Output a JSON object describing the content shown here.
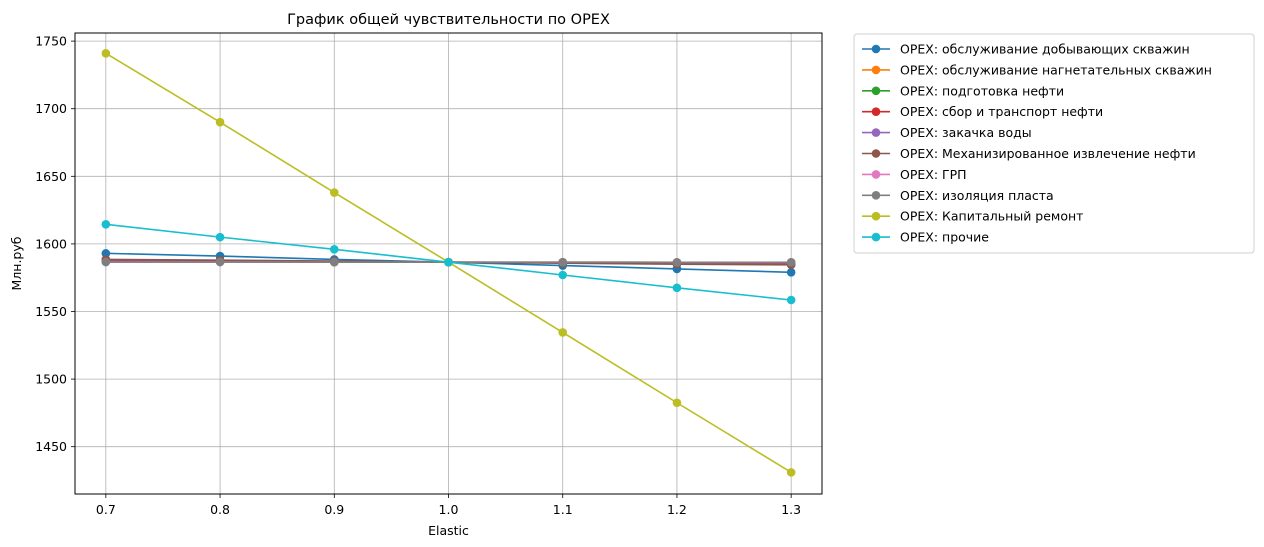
{
  "chart_data": {
    "type": "line",
    "title": "График общей чувствительности по OPEX",
    "xlabel": "Elastic",
    "ylabel": "Млн.руб",
    "x": [
      0.7,
      0.8,
      0.9,
      1.0,
      1.1,
      1.2,
      1.3
    ],
    "x_ticks": [
      "0.7",
      "0.8",
      "0.9",
      "1.0",
      "1.1",
      "1.2",
      "1.3"
    ],
    "xlim": [
      0.673,
      1.327
    ],
    "y_ticks": [
      "1450",
      "1500",
      "1550",
      "1600",
      "1650",
      "1700",
      "1750"
    ],
    "y_tick_values": [
      1450,
      1500,
      1550,
      1600,
      1650,
      1700,
      1750
    ],
    "ylim": [
      1415,
      1756
    ],
    "grid": true,
    "legend_position": "outside-top-right",
    "series": [
      {
        "name": "OPEX: обслуживание добывающих скважин",
        "color": "#1f77b4",
        "values": [
          1593,
          1591,
          1588.5,
          1586.5,
          1584,
          1581.5,
          1579
        ]
      },
      {
        "name": "OPEX: обслуживание нагнетательных скважин",
        "color": "#ff7f0e",
        "values": [
          1587,
          1587,
          1586.8,
          1586.5,
          1586.3,
          1586,
          1585.8
        ]
      },
      {
        "name": "OPEX: подготовка нефти",
        "color": "#2ca02c",
        "values": [
          1587.5,
          1587.2,
          1586.9,
          1586.5,
          1586.1,
          1585.8,
          1585.5
        ]
      },
      {
        "name": "OPEX: сбор и транспорт нефти",
        "color": "#d62728",
        "values": [
          1588,
          1587.5,
          1587,
          1586.5,
          1586,
          1585.5,
          1585
        ]
      },
      {
        "name": "OPEX: закачка воды",
        "color": "#9467bd",
        "values": [
          1587,
          1586.8,
          1586.7,
          1586.5,
          1586.3,
          1586.2,
          1586
        ]
      },
      {
        "name": "OPEX: Механизированное извлечение нефти",
        "color": "#8c564b",
        "values": [
          1588.5,
          1588,
          1587.3,
          1586.5,
          1585.7,
          1585,
          1584.5
        ]
      },
      {
        "name": "OPEX: ГРП",
        "color": "#e377c2",
        "values": [
          1586.6,
          1586.6,
          1586.5,
          1586.5,
          1586.5,
          1586.4,
          1586.4
        ]
      },
      {
        "name": "OPEX: изоляция пласта",
        "color": "#7f7f7f",
        "values": [
          1586.6,
          1586.6,
          1586.5,
          1586.5,
          1586.5,
          1586.4,
          1586.4
        ]
      },
      {
        "name": "OPEX: Капитальный ремонт",
        "color": "#bcbd22",
        "values": [
          1741,
          1690,
          1638,
          1586.5,
          1534.5,
          1482.5,
          1431
        ]
      },
      {
        "name": "OPEX: прочие",
        "color": "#17becf",
        "values": [
          1614.5,
          1605,
          1596,
          1586.5,
          1577,
          1567.5,
          1558.5
        ]
      }
    ]
  }
}
